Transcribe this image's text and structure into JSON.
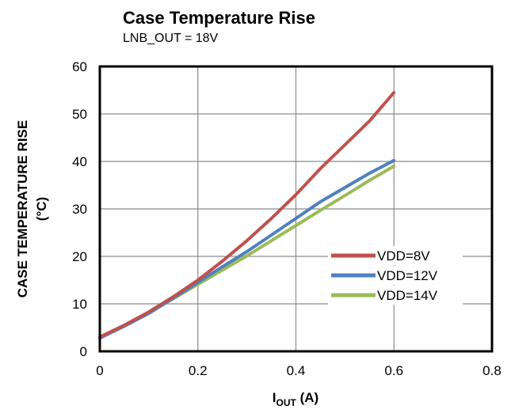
{
  "chart_data": {
    "type": "line",
    "title": "Case Temperature Rise",
    "subtitle": "LNB_OUT = 18V",
    "ylabel_line1": "CASE TEMPERATURE RISE",
    "ylabel_line2": "(°C)",
    "xlabel_main": "I",
    "xlabel_sub": "OUT",
    "xlabel_unit": " (A)",
    "xlim": [
      0,
      0.8
    ],
    "ylim": [
      0,
      60
    ],
    "xticks": [
      "0",
      "0.2",
      "0.4",
      "0.6",
      "0.8"
    ],
    "yticks": [
      "0",
      "10",
      "20",
      "30",
      "40",
      "50",
      "60"
    ],
    "grid": true,
    "legend_position": "right",
    "series": [
      {
        "name": "VDD=8V",
        "color": "#c0504d",
        "x": [
          0,
          0.05,
          0.1,
          0.15,
          0.2,
          0.25,
          0.3,
          0.35,
          0.4,
          0.45,
          0.5,
          0.55,
          0.6
        ],
        "y": [
          3,
          5.5,
          8.3,
          11.5,
          15,
          19,
          23.3,
          28,
          33,
          38.5,
          43.5,
          48.5,
          54.5
        ]
      },
      {
        "name": "VDD=12V",
        "color": "#4f81bd",
        "x": [
          0,
          0.05,
          0.1,
          0.15,
          0.2,
          0.25,
          0.3,
          0.35,
          0.4,
          0.45,
          0.5,
          0.55,
          0.6
        ],
        "y": [
          2.8,
          5.3,
          8,
          11.2,
          14.5,
          17.8,
          21,
          24.5,
          28,
          31.5,
          34.5,
          37.5,
          40.2
        ]
      },
      {
        "name": "VDD=14V",
        "color": "#9bbb59",
        "x": [
          0,
          0.05,
          0.1,
          0.15,
          0.2,
          0.25,
          0.3,
          0.35,
          0.4,
          0.45,
          0.5,
          0.55,
          0.6
        ],
        "y": [
          3,
          5.5,
          8.2,
          11.1,
          14.1,
          17.1,
          20.1,
          23.3,
          26.5,
          29.7,
          32.8,
          36,
          39
        ]
      }
    ]
  }
}
